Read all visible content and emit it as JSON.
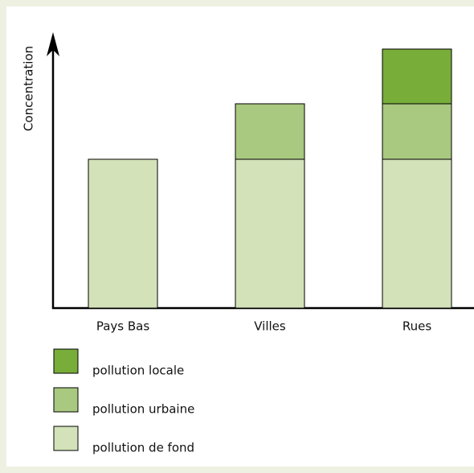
{
  "chart_data": {
    "type": "stacked-bar",
    "y_label": "Concentration",
    "categories": [
      "Pays Bas",
      "Villes",
      "Rues"
    ],
    "series": [
      {
        "name": "pollution de fond",
        "color": "#d3e2b9",
        "values": [
          185,
          185,
          185
        ]
      },
      {
        "name": "pollution urbaine",
        "color": "#a9c880",
        "values": [
          null,
          69,
          69
        ]
      },
      {
        "name": "pollution locale",
        "color": "#78ad3a",
        "values": [
          null,
          null,
          68
        ]
      }
    ],
    "ylim": [
      0,
      338
    ]
  }
}
